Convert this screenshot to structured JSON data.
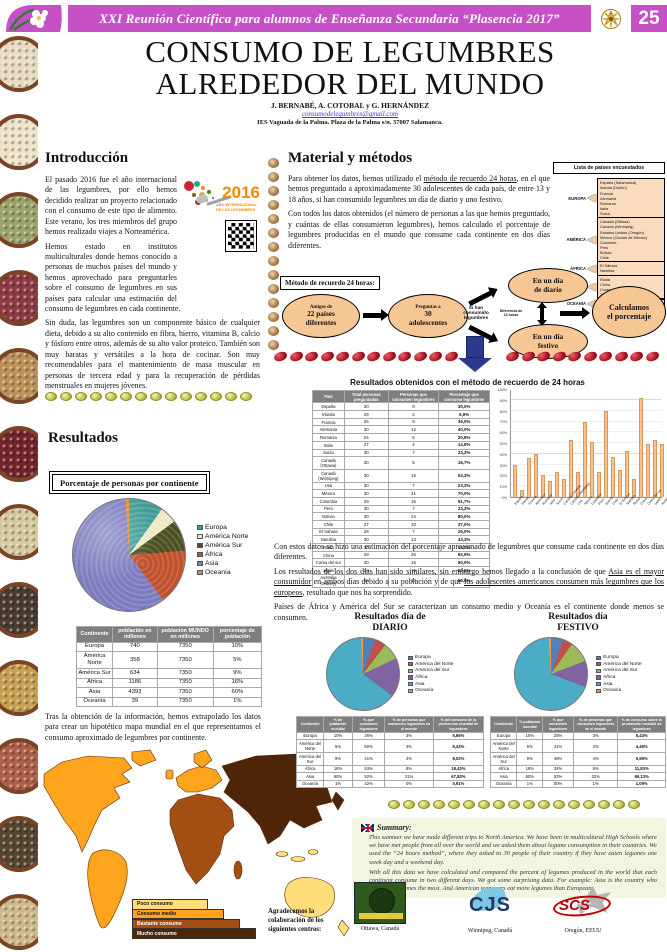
{
  "banner": {
    "text": "XXI Reunión Científica para alumnos de Enseñanza Secundaria “Plasencia 2017”",
    "number": "25"
  },
  "title": {
    "line1": "CONSUMO DE LEGUMBRES",
    "line2": "ALREDEDOR DEL MUNDO",
    "authors": "J. BERNABÉ, A. COTOBAL y G. HERNÁNDEZ",
    "email": "consumodelegumbres@gmail.com",
    "affiliation": "IES Vaguada de la Palma.  Plaza de la Palma s/n.  37007 Salamanca."
  },
  "intro": {
    "heading": "Introducción",
    "p1": "El pasado 2016 fue el año internacional de las legumbres, por ello hemos decidido realizar un proyecto relacionado con el consumo de este tipo de alimento. Este verano, los tres miembros del grupo  hemos realizado viajes a Norteamérica.",
    "p2": "Hemos estado en institutos multiculturales donde hemos conocido a personas de muchos países del mundo y hemos aprovechado para preguntarles sobre el consumo de legumbres en sus países para calcular una estimación del consumo de legumbres en cada continente.",
    "p3": "Sin duda, las legumbres son un componente básico de cualquier dieta, debido a su alto contenido en fibra, hierro, vitamina B, calcio y fósforo entre otros, además de su alto valor proteico. También son muy baratas y versátiles a la hora de cocinar. Son muy recomendables para el mantenimiento de masa muscular en personas de tercera edad y para la recuperación de pérdidas menstruales en mujeres jóvenes.",
    "logo2016": {
      "year": "2016",
      "caption": "AÑO INTERNACIONAL DE LAS LEGUMBRES"
    }
  },
  "metodos": {
    "heading": "Material y métodos",
    "p1a": "Para obtener los datos, hemos utilizado el ",
    "p1b": "método de recuerdo 24 horas",
    "p1c": ", en el que hemos preguntado a aproximadamente 30 adolescentes de cada país, de entre 13 y 18 años, si han consumido legumbres un día de diario y uno festivo.",
    "p2": "Con todos los datos obtenidos (el número de personas a las que hemos preguntado, y cuántas de ellas consumieron legumbres), hemos calculado el porcentaje de legumbres producidas en el mundo que consume cada continente en dos días diferentes.",
    "flow": {
      "label": "Método de recuerdo 24 horas:",
      "e1a": "Amigos de",
      "e1b": "22 países",
      "e1c": "diferentes",
      "e2a": "Preguntas a",
      "e2b": "30",
      "e2c": "adolescentes",
      "cond": "Si han consumido legumbres",
      "diario1": "En un día",
      "diario2": "de diario",
      "festivo1": "En un día",
      "festivo2": "festivo",
      "diff": "Diferencia de 24 horas",
      "calc1": "Calculamos",
      "calc2": "el porcentaje"
    },
    "lista": {
      "title": "Lista de países encuestados",
      "groups": [
        {
          "region": "EUROPA",
          "countries": [
            "España (Salamanca)",
            "Irlanda (Dublín)",
            "Francia",
            "Alemania",
            "Rumanía",
            "Italia",
            "Suiza"
          ]
        },
        {
          "region": "AMÉRICA",
          "countries": [
            "Canadá (Ottawa)",
            "Canadá (Winnipeg)",
            "Estados Unidos (Oregón)",
            "México (Ciudad de México)",
            "Colombia",
            "Perú",
            "Bolivia",
            "Chile"
          ]
        },
        {
          "region": "ÁFRICA",
          "countries": [
            "El Sáhara",
            "Namibia"
          ]
        },
        {
          "region": "ASIA",
          "countries": [
            "Rusia",
            "China",
            "Corea del Sur",
            "Japón"
          ]
        },
        {
          "region": "OCEANÍA",
          "countries": [
            "Australia (Sídney)"
          ]
        }
      ]
    }
  },
  "recuerdo": {
    "label": "Resultados obtenidos con el método de recuerdo de 24 horas",
    "headers": [
      "País",
      "Total personas preguntadas",
      "Personas que consumen legumbres",
      "Porcentaje que consume legumbres"
    ],
    "rows": [
      [
        "España",
        "30",
        "9",
        "30,0%"
      ],
      [
        "Irlanda",
        "29",
        "2",
        "6,9%"
      ],
      [
        "Francia",
        "25",
        "9",
        "36,0%"
      ],
      [
        "Alemania",
        "30",
        "12",
        "40,0%"
      ],
      [
        "Rumania",
        "24",
        "5",
        "20,8%"
      ],
      [
        "Italia",
        "27",
        "4",
        "14,8%"
      ],
      [
        "Suiza",
        "30",
        "7",
        "23,3%"
      ],
      [
        "Canadá (Ottawa)",
        "30",
        "5",
        "16,7%"
      ],
      [
        "Canadá (Winnipeg)",
        "30",
        "16",
        "53,3%"
      ],
      [
        "Usa",
        "30",
        "7",
        "23,3%"
      ],
      [
        "México",
        "30",
        "21",
        "70,0%"
      ],
      [
        "Colombia",
        "29",
        "15",
        "51,7%"
      ],
      [
        "Perú",
        "30",
        "7",
        "23,3%"
      ],
      [
        "Bolivia",
        "30",
        "24",
        "80,0%"
      ],
      [
        "Chile",
        "27",
        "10",
        "37,0%"
      ],
      [
        "El Sahara",
        "28",
        "7",
        "25,0%"
      ],
      [
        "Namibia",
        "30",
        "13",
        "43,3%"
      ],
      [
        "Rusia",
        "30",
        "5",
        "16,7%"
      ],
      [
        "China",
        "28",
        "26",
        "92,9%"
      ],
      [
        "Corea del sur",
        "30",
        "15",
        "50,0%"
      ],
      [
        "Japón",
        "28",
        "15",
        "53,6%"
      ],
      [
        "Australia (Sídney)",
        "26",
        "13",
        "50,0%"
      ]
    ],
    "pA": "Con estos datos se hizo una estimación del porcentaje aproximado de legumbres que consume cada continente en dos días diferentes.",
    "pB1": "Los resultados de los dos días han sido similares, sin embargo hemos llegado a la conclusión de que ",
    "pB2": "Asia es el mayor consumidor",
    "pB3": " en ambos días debido a su población y de que ",
    "pB4": "los adolescentes americanos consumen más legumbres que los europeos",
    "pB5": ", resultado que nos ha sorprendido.",
    "pC": "Países de  África y América del Sur se caracterizan un consumo medio y Oceanía es el continente donde menos se consumen."
  },
  "resultados": {
    "heading": "Resultados",
    "pie_label": "Porcentaje de personas por continente",
    "cont_headers": [
      "Continente",
      "población en millones",
      "población MUNDO en millones",
      "porcentaje de población"
    ],
    "cont_rows": [
      [
        "Europa",
        "740",
        "7350",
        "10%"
      ],
      [
        "América Norte",
        "358",
        "7350",
        "5%"
      ],
      [
        "América Sur",
        "634",
        "7350",
        "9%"
      ],
      [
        "África",
        "1186",
        "7350",
        "16%"
      ],
      [
        "Asia",
        "4393",
        "7350",
        "60%"
      ],
      [
        "Oceanía",
        "39",
        "7350",
        "1%"
      ]
    ],
    "extrapolado": "Tras la obtención de la información, hemos extrapolado los datos para crear un hipotético mapa mundial en el que representamos el consumo aproximado de legumbres por continente."
  },
  "diario": {
    "title1": "Resultados día de",
    "title2": "DIARIO",
    "headers": [
      "Continente",
      "% de población mundial",
      "% que consumen legumbres",
      "% de personas que consumen legumbres en el mundo",
      "% del consumo de la producción mundial de legumbres"
    ],
    "rows": [
      [
        "Europa",
        "10%",
        "26%",
        "3%",
        "5,65%"
      ],
      [
        "América del Norte",
        "5%",
        "50%",
        "3%",
        "5,43%"
      ],
      [
        "América del Sur",
        "9%",
        "41%",
        "4%",
        "8,02%"
      ],
      [
        "África",
        "16%",
        "53%",
        "8%",
        "18,43%"
      ],
      [
        "Asia",
        "60%",
        "52%",
        "31%",
        "67,83%"
      ],
      [
        "Oceanía",
        "1%",
        "42%",
        "0%",
        "0,91%"
      ]
    ]
  },
  "festivo": {
    "title1": "Resultados día",
    "title2": "FESTIVO",
    "headers": [
      "Continente",
      "% población mundial",
      "% que consumen legumbres",
      "% de personas que consumen legumbres en el mundo",
      "% de consumo sobre la producción mundial de legumbres"
    ],
    "rows": [
      [
        "Europa",
        "10%",
        "25%",
        "3%",
        "5,43%"
      ],
      [
        "América del Norte",
        "5%",
        "41%",
        "2%",
        "4,46%"
      ],
      [
        "América del Sur",
        "9%",
        "48%",
        "4%",
        "9,59%"
      ],
      [
        "África",
        "16%",
        "34%",
        "5%",
        "11,83%"
      ],
      [
        "Asia",
        "60%",
        "53%",
        "32%",
        "69,13%"
      ],
      [
        "Oceanía",
        "1%",
        "50%",
        "1%",
        "1,09%"
      ]
    ]
  },
  "map": {
    "legend": [
      {
        "label": "Poco consumo",
        "color": "#FFDE7A"
      },
      {
        "label": "Consumo medio",
        "color": "#FFA41C"
      },
      {
        "label": "Bastante consumo",
        "color": "#A34E12"
      },
      {
        "label": "Mucho consumo",
        "color": "#4E2508"
      }
    ]
  },
  "summary": {
    "title": "Summary:",
    "p1": "This summer we have made different trips to North America. We have been in multicultural High Schools where we have met people from all over the world and we asked them about legume consumption in their countries. We used the “24 hours method”, where they asked to 30 people of their country if they have eaten legumes one week day and a weekend day.",
    "p2": "With all this data we have calculated and compared the percent of legumes produced in the world that each continent consume in two different days. We got some surprising data. For example: Asia is the country who consumes legumes the most. And American teenagers eat more legumes than Europeans."
  },
  "ack": {
    "text": "Agradecemos la colaboración de los siguientes centros:",
    "captions": [
      "Ottawa, Canadá",
      "Winnipeg, Canadá",
      "Oregón, EEUU"
    ]
  },
  "chart_data": {
    "continent_pie": {
      "type": "pie",
      "title": "Porcentaje de personas por continente",
      "labels": [
        "Europa",
        "América Norte",
        "América Sur",
        "África",
        "Asia",
        "Oceanía"
      ],
      "values": [
        10,
        5,
        9,
        16,
        60,
        1
      ],
      "colors": [
        "#3E9C95",
        "#EEE9C4",
        "#4B4F20",
        "#C14F2B",
        "#7B7BBE",
        "#E08A26"
      ]
    },
    "country_bar": {
      "type": "bar",
      "title": "Resultados obtenidos con el método de recuerdo de 24 horas",
      "categories": [
        "España",
        "Irlanda",
        "Francia",
        "Alemania",
        "Rumania",
        "Italia",
        "Suiza",
        "Canadá (Ottawa)",
        "Canadá (Winnipeg)",
        "Usa",
        "México",
        "Colombia",
        "Perú",
        "Bolivia",
        "Chile",
        "El Sahara",
        "Namibia",
        "Rusia",
        "China",
        "Corea del sur",
        "Japón",
        "Australia (Sídney)"
      ],
      "values": [
        30,
        6.9,
        36,
        40,
        20.8,
        14.8,
        23.3,
        16.7,
        53.3,
        23.3,
        70,
        51.7,
        23.3,
        80,
        37,
        25,
        43.3,
        16.7,
        92.9,
        50,
        53.6,
        50
      ],
      "max": 100,
      "ylim": [
        0,
        100
      ],
      "yticks": [
        "100%",
        "90%",
        "80%",
        "70%",
        "60%",
        "50%",
        "40%",
        "30%",
        "20%",
        "10%",
        "0%"
      ],
      "bar_color": "#FAC090"
    },
    "diario_pie": {
      "type": "pie",
      "title": "Resultados día de DIARIO",
      "labels": [
        "Europa",
        "América del Norte",
        "América del Sur",
        "África",
        "Asia",
        "Oceanía"
      ],
      "values": [
        5.65,
        5.43,
        8.02,
        18.43,
        67.83,
        0.91
      ],
      "colors": [
        "#4F81BD",
        "#C0504D",
        "#9BBB59",
        "#8064A2",
        "#4BACC6",
        "#F79646"
      ]
    },
    "festivo_pie": {
      "type": "pie",
      "title": "Resultados día FESTIVO",
      "labels": [
        "Europa",
        "América del Norte",
        "América del Sur",
        "África",
        "Asia",
        "Oceanía"
      ],
      "values": [
        5.43,
        4.46,
        9.59,
        11.83,
        69.13,
        1.09
      ],
      "colors": [
        "#4F81BD",
        "#C0504D",
        "#9BBB59",
        "#8064A2",
        "#4BACC6",
        "#F79646"
      ]
    }
  }
}
